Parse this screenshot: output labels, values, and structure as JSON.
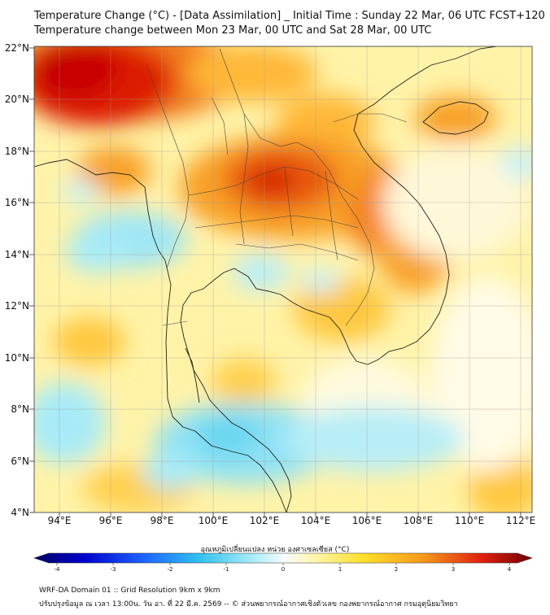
{
  "header": {
    "title_line1": "Temperature Change (°C) - [Data Assimilation] _ Initial Time : Sunday 22 Mar, 06 UTC FCST+120",
    "title_line2": "Temperature change between Mon 23 Mar, 00 UTC and Sat 28 Mar, 00 UTC"
  },
  "map": {
    "lat_labels": [
      "22°N",
      "20°N",
      "18°N",
      "16°N",
      "14°N",
      "12°N",
      "10°N",
      "8°N",
      "6°N",
      "4°N"
    ],
    "lon_labels": [
      "94°E",
      "96°E",
      "98°E",
      "100°E",
      "102°E",
      "104°E",
      "106°E",
      "108°E",
      "110°E",
      "112°E"
    ]
  },
  "colorbar": {
    "label": "อุณหภูมิเปลี่ยนแปลง หน่วย องศาเซลเซียส (°C)",
    "ticks": [
      "-4",
      "-3",
      "-2",
      "-1",
      "0",
      "1",
      "2",
      "3",
      "4"
    ]
  },
  "footer": {
    "line1": "WRF-DA Domain 01 :: Grid Resolution 9km x 9km",
    "line2": "ปรับปรุงข้อมูล ณ เวลา 13:00น. วัน อา. ที่ 22 มี.ค. 2569 -- © ส่วนพยากรณ์อากาศเชิงตัวเลข กองพยากรณ์อากาศ กรมอุตุนิยมวิทยา"
  },
  "colors": {
    "warm_max": "#d40000",
    "warm": "#f08a1a",
    "mild": "#ffe45a",
    "neutral": "#fffbe0",
    "cool": "#9fe6f5"
  }
}
